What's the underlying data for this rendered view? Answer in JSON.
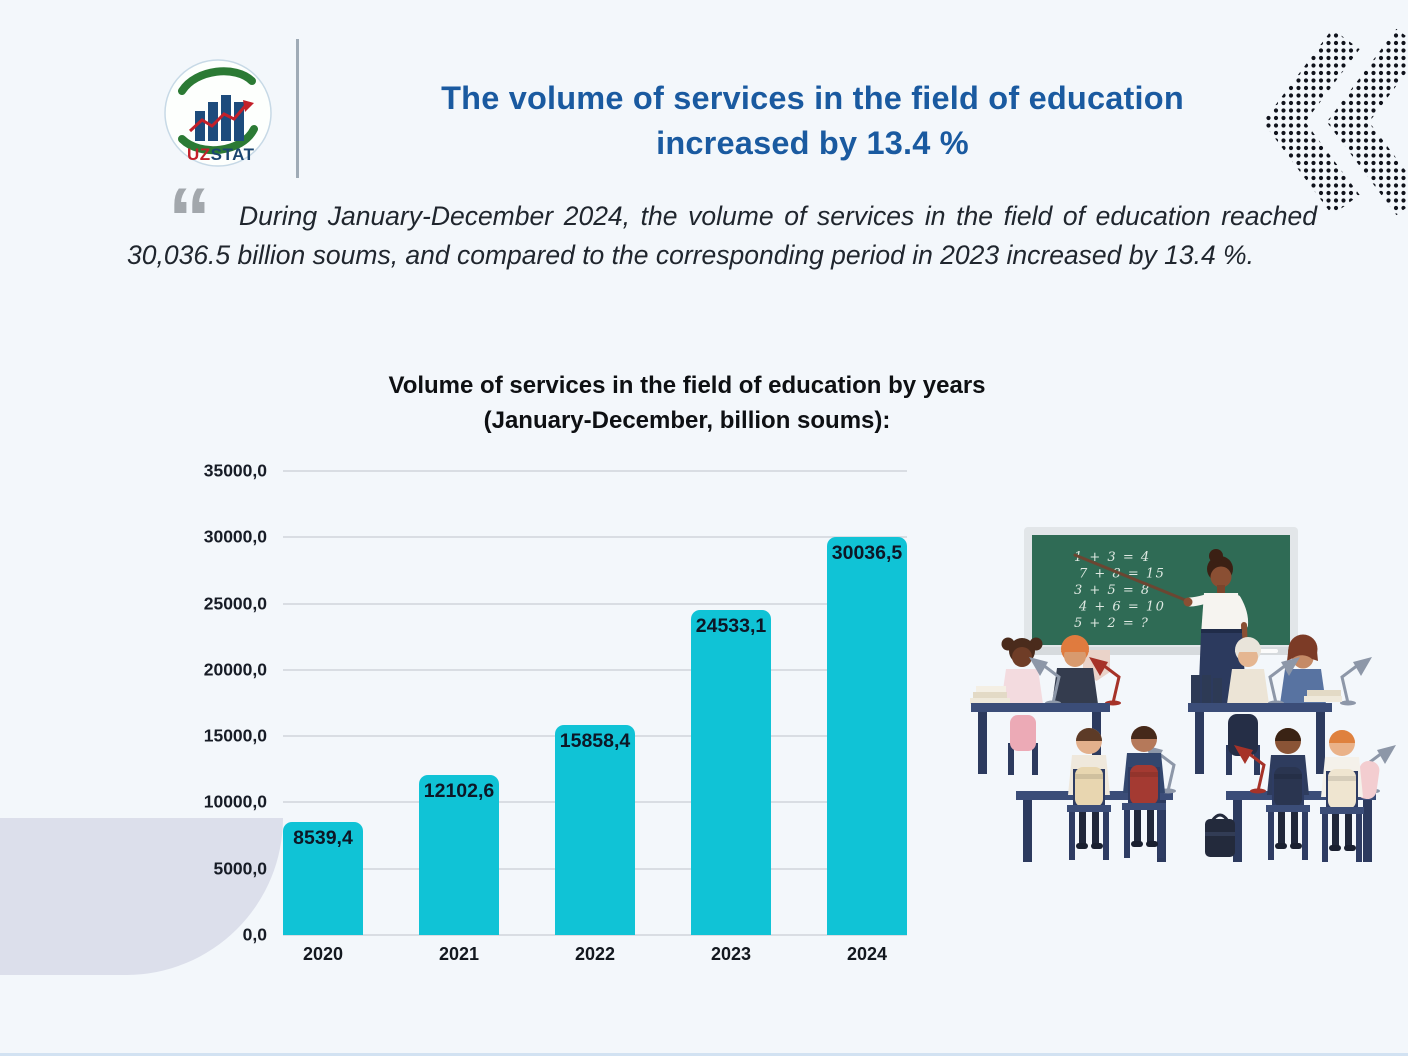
{
  "page": {
    "background_color": "#f3f7fb"
  },
  "header": {
    "logo": {
      "text_uz": "UZ",
      "text_stat": "STAT",
      "uz_color": "#c3202a",
      "stat_color": "#1b4670"
    },
    "title_line1": "The volume of services in the field of education",
    "title_line2": "increased by 13.4 %",
    "title_color": "#1a5aa0"
  },
  "quote": {
    "icon": "open-double-quote",
    "icon_glyph": "“",
    "text": "During January-December 2024, the volume of services in the field of education reached 30,036.5 billion soums, and compared to the corresponding period in 2023 increased by 13.4 %."
  },
  "chart_data": {
    "type": "bar",
    "title_line1": "Volume of services in the field of education by years",
    "title_line2": "(January-December, billion soums):",
    "categories": [
      "2020",
      "2021",
      "2022",
      "2023",
      "2024"
    ],
    "values": [
      8539.4,
      12102.6,
      15858.4,
      24533.1,
      30036.5
    ],
    "value_labels": [
      "8539,4",
      "12102,6",
      "15858,4",
      "24533,1",
      "30036,5"
    ],
    "y_tick_values": [
      35000,
      30000,
      25000,
      20000,
      15000,
      10000,
      5000,
      0
    ],
    "y_tick_labels": [
      "35000,0",
      "30000,0",
      "25000,0",
      "20000,0",
      "15000,0",
      "10000,0",
      "5000,0",
      "0,0"
    ],
    "ylim": [
      0,
      35000
    ],
    "bar_color": "#10c3d6",
    "grid": true,
    "legend": false,
    "value_label_position": "inside-top"
  },
  "illustration": {
    "name": "classroom-scene",
    "board_lines": [
      "1 + 3 = 4",
      "7 + 8 = 15",
      "3 + 5 = 8",
      "4 + 6 = 10",
      "5 + 2 = ?"
    ]
  }
}
